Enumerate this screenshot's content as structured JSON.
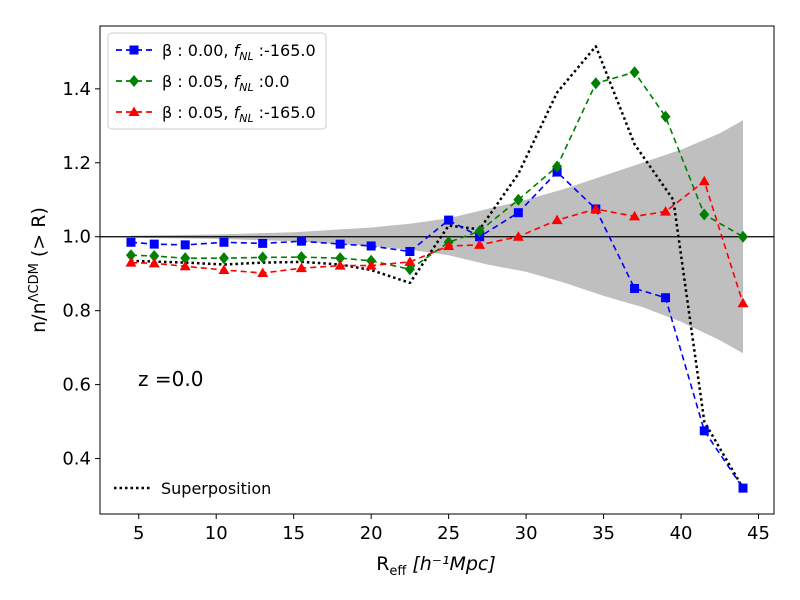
{
  "chart_data": {
    "type": "line",
    "xlabel_main": "R",
    "xlabel_sub": "eff",
    "xlabel_unit": "[h⁻¹Mpc]",
    "ylabel_main": "n/n",
    "ylabel_sup": "ΛCDM",
    "ylabel_suffix": " (> R)",
    "xlim": [
      2.5,
      46
    ],
    "ylim": [
      0.25,
      1.57
    ],
    "xticks": [
      5,
      10,
      15,
      20,
      25,
      30,
      35,
      40,
      45
    ],
    "yticks": [
      0.4,
      0.6,
      0.8,
      1.0,
      1.2,
      1.4
    ],
    "ytick_labels": [
      "0.4",
      "0.6",
      "0.8",
      "1.0",
      "1.2",
      "1.4"
    ],
    "reference_line": 1.0,
    "annotation": "z =0.0",
    "band": {
      "x": [
        4.5,
        10,
        15,
        20,
        22.5,
        25,
        27.5,
        30,
        32.5,
        35,
        37.5,
        40,
        42.5,
        44
      ],
      "upper": [
        1.003,
        1.006,
        1.012,
        1.025,
        1.035,
        1.05,
        1.075,
        1.1,
        1.13,
        1.165,
        1.2,
        1.235,
        1.28,
        1.315
      ],
      "lower": [
        0.997,
        0.994,
        0.988,
        0.975,
        0.965,
        0.95,
        0.925,
        0.905,
        0.875,
        0.84,
        0.81,
        0.77,
        0.72,
        0.685
      ]
    },
    "series": [
      {
        "name_prefix": "β : 0.00, ",
        "name_f": "f",
        "name_sub": "NL",
        "name_suffix": " :-165.0",
        "color": "#0000ff",
        "marker": "square",
        "x": [
          4.5,
          6,
          8,
          10.5,
          13,
          15.5,
          18,
          20,
          22.5,
          25,
          27,
          29.5,
          32,
          34.5,
          37,
          39,
          41.5,
          44
        ],
        "y": [
          0.985,
          0.98,
          0.978,
          0.985,
          0.982,
          0.988,
          0.98,
          0.975,
          0.96,
          1.045,
          1.0,
          1.065,
          1.175,
          1.075,
          0.86,
          0.835,
          0.475,
          0.32
        ]
      },
      {
        "name_prefix": "β : 0.05, ",
        "name_f": "f",
        "name_sub": "NL",
        "name_suffix": " :0.0",
        "color": "#008000",
        "marker": "diamond",
        "x": [
          4.5,
          6,
          8,
          10.5,
          13,
          15.5,
          18,
          20,
          22.5,
          25,
          27,
          29.5,
          32,
          34.5,
          37,
          39,
          41.5,
          44
        ],
        "y": [
          0.95,
          0.948,
          0.942,
          0.942,
          0.944,
          0.945,
          0.942,
          0.935,
          0.912,
          0.985,
          1.015,
          1.1,
          1.19,
          1.415,
          1.445,
          1.325,
          1.06,
          1.0
        ]
      },
      {
        "name_prefix": "β : 0.05, ",
        "name_f": "f",
        "name_sub": "NL",
        "name_suffix": " :-165.0",
        "color": "#ff0000",
        "marker": "triangle",
        "x": [
          4.5,
          6,
          8,
          10.5,
          13,
          15.5,
          18,
          20,
          22.5,
          25,
          27,
          29.5,
          32,
          34.5,
          37,
          39,
          41.5,
          44
        ],
        "y": [
          0.93,
          0.928,
          0.92,
          0.91,
          0.902,
          0.915,
          0.922,
          0.922,
          0.932,
          0.975,
          0.978,
          1.0,
          1.045,
          1.075,
          1.055,
          1.068,
          1.15,
          0.82
        ]
      },
      {
        "name": "Superposition",
        "color": "#000000",
        "marker": "none",
        "dotted": true,
        "x": [
          4.5,
          8,
          10.5,
          13,
          15.5,
          18,
          20,
          22.5,
          25,
          27,
          29.5,
          32,
          34.5,
          37,
          39.5,
          41.5,
          44
        ],
        "y": [
          0.935,
          0.93,
          0.925,
          0.93,
          0.932,
          0.925,
          0.91,
          0.875,
          1.03,
          1.02,
          1.17,
          1.39,
          1.515,
          1.25,
          1.1,
          0.5,
          0.32
        ]
      }
    ]
  }
}
